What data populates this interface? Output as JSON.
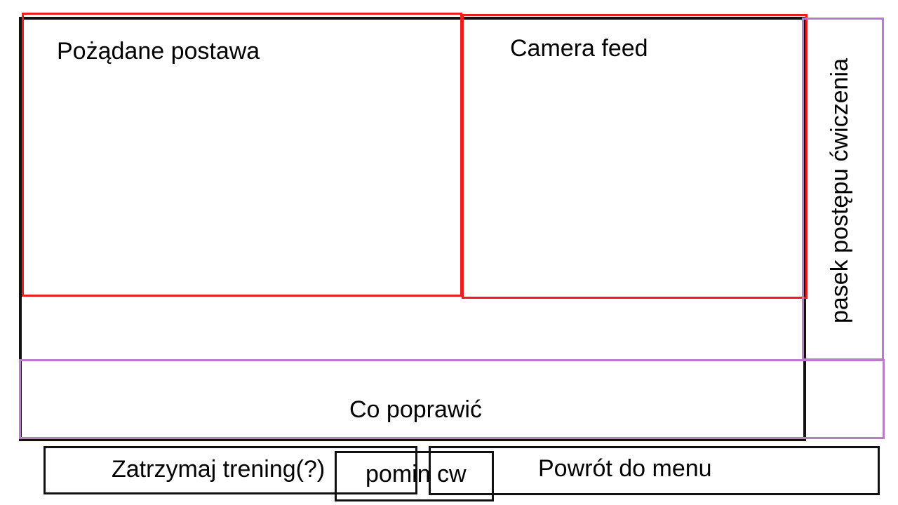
{
  "pose_panel": {
    "title": "Pożądane postawa",
    "border_color": "#ee1c1c"
  },
  "camera_panel": {
    "title": "Camera feed",
    "border_color": "#ee1c1c"
  },
  "progress_panel": {
    "title": "pasek postępu ćwiczenia",
    "border_color": "#b97cc9"
  },
  "feedback_panel": {
    "title": "Co poprawić",
    "border_color": "#b97cc9"
  },
  "buttons": {
    "pause_label": "Zatrzymaj trening(?)",
    "skip_label": "pomin cw",
    "menu_label": "Powrót do menu"
  }
}
